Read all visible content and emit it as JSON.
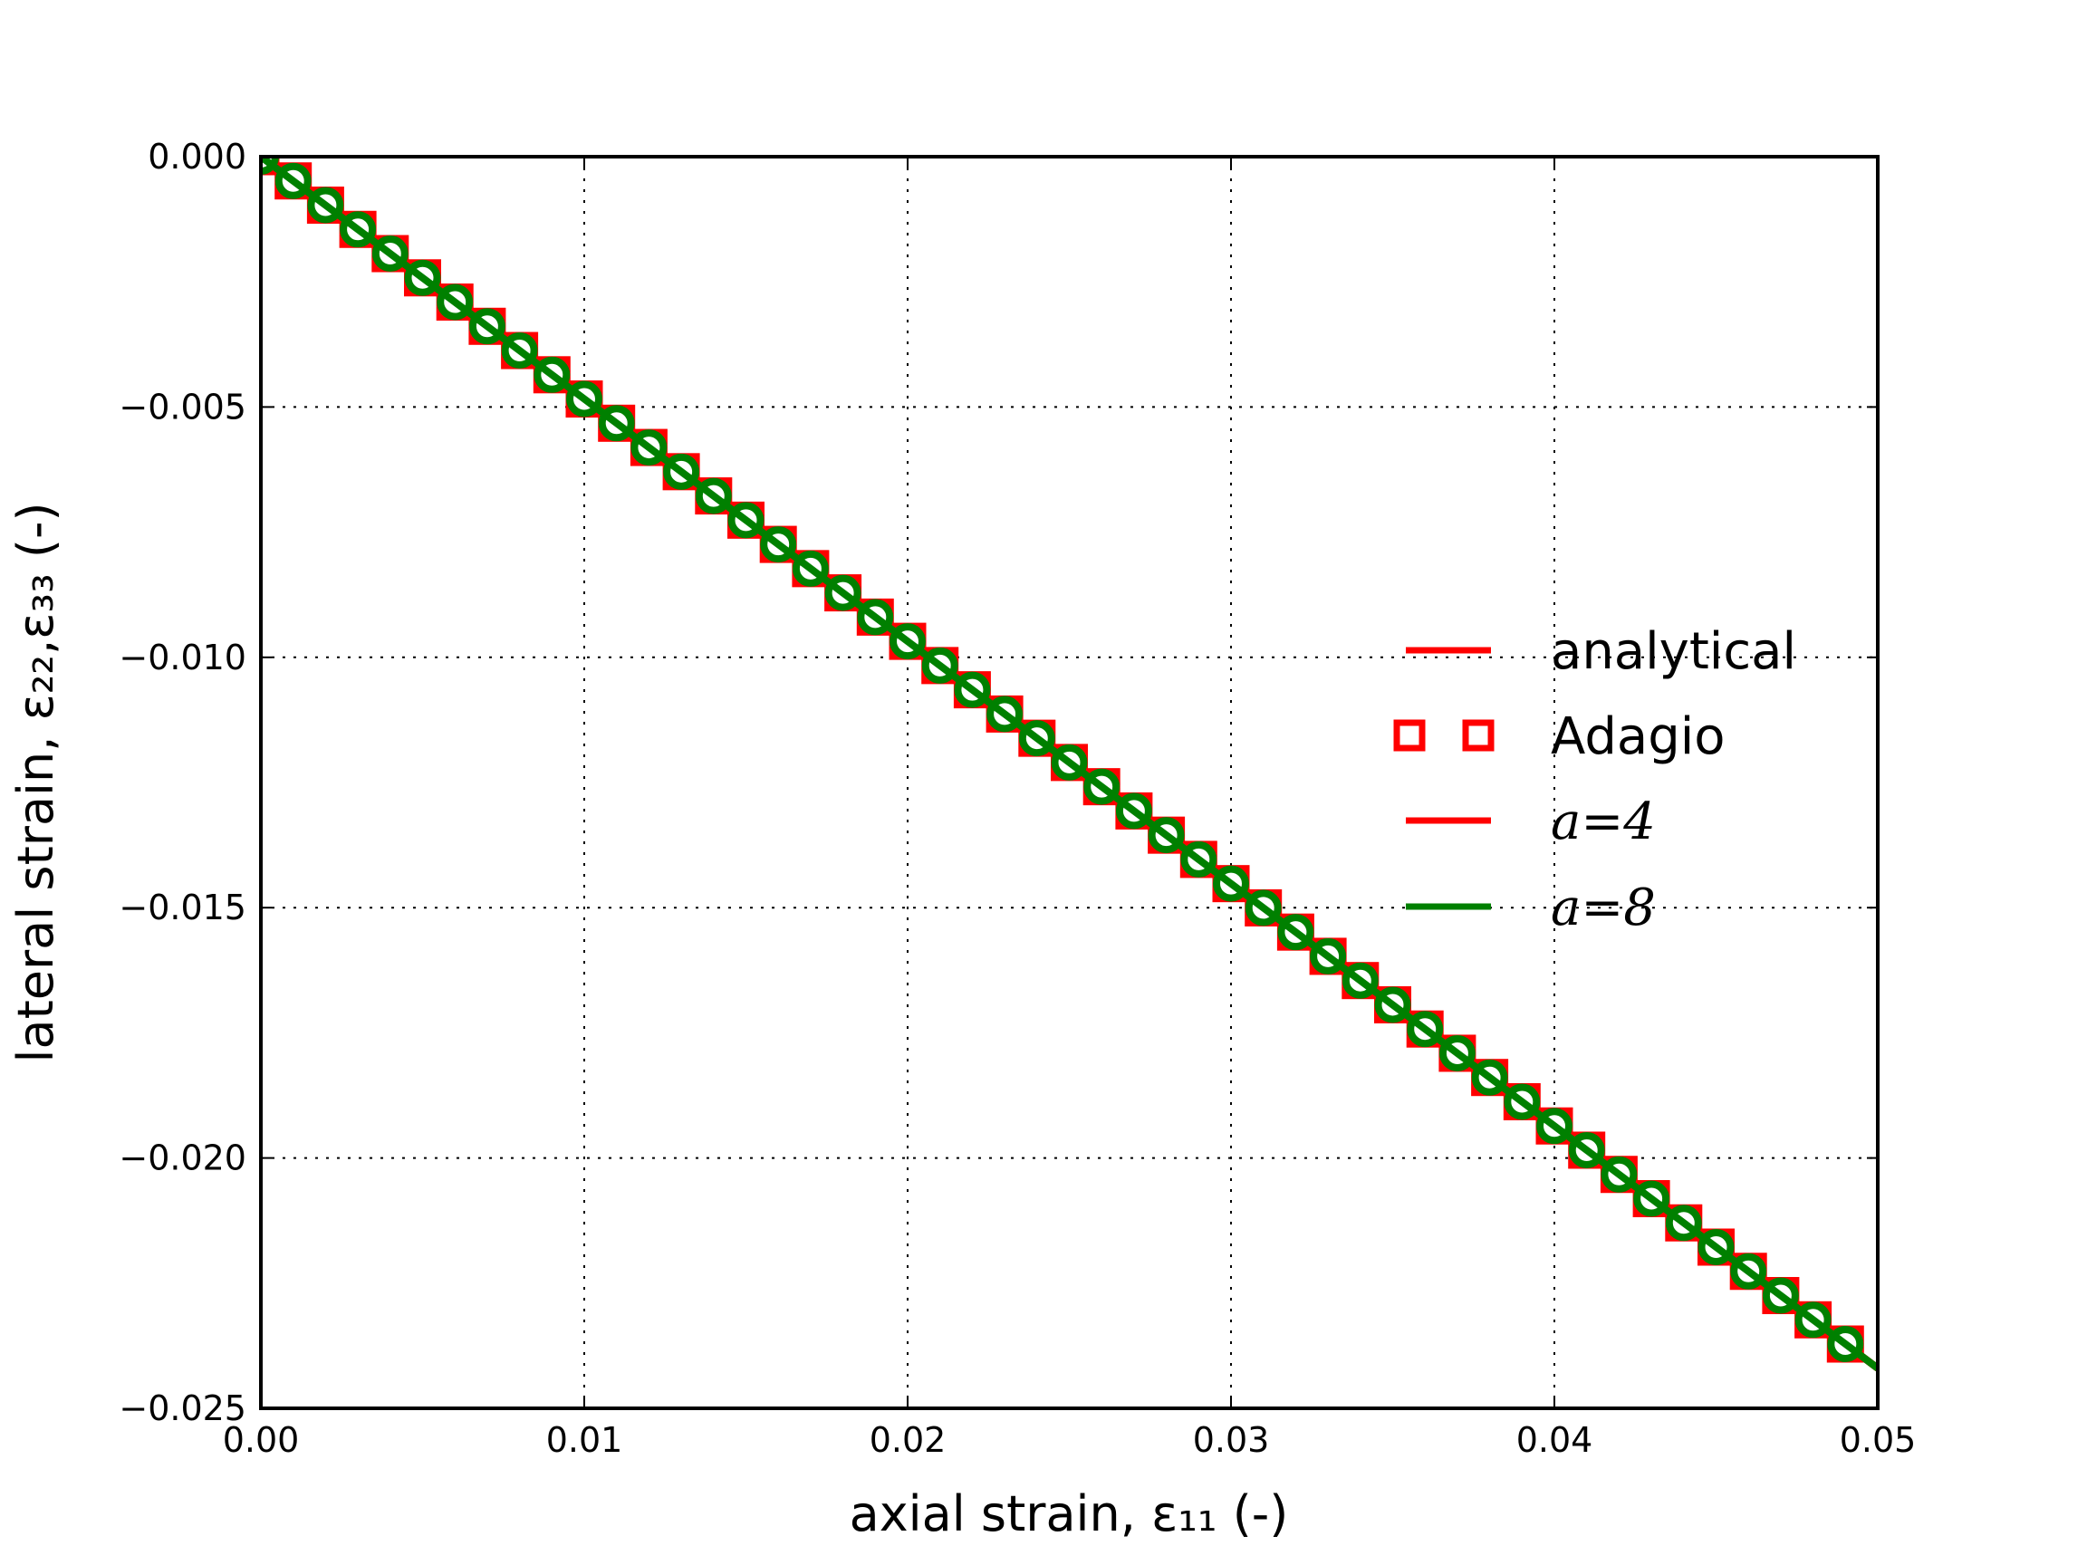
{
  "chart_data": {
    "type": "line",
    "title": "",
    "xlabel": "axial strain, ε₁₁ (-)",
    "ylabel": "lateral strain, ε₂₂,ε₃₃ (-)",
    "xlim": [
      0,
      0.05
    ],
    "ylim": [
      -0.025,
      0
    ],
    "grid": true,
    "legend_placement": "center-right",
    "x_ticks": [
      "0.00",
      "0.01",
      "0.02",
      "0.03",
      "0.04",
      "0.05"
    ],
    "y_ticks": [
      "0.000",
      "−0.005",
      "−0.010",
      "−0.015",
      "−0.020",
      "−0.025"
    ],
    "x_tick_values": [
      0,
      0.01,
      0.02,
      0.03,
      0.04,
      0.05
    ],
    "y_tick_values": [
      0,
      -0.005,
      -0.01,
      -0.015,
      -0.02,
      -0.025
    ],
    "slope": -0.484,
    "marker_step": 0.001,
    "marker_count": 50,
    "series": [
      {
        "name": "analytical",
        "style": "line",
        "color": "#ff0000",
        "x": [
          0,
          0.05
        ],
        "y": [
          0,
          -0.0242
        ]
      },
      {
        "name": "Adagio",
        "style": "square-markers",
        "color": "#ff0000",
        "x_from": 0,
        "x_to": 0.049,
        "y_relation": "y = -0.484 x"
      },
      {
        "name": "a=4",
        "style": "line",
        "color": "#ff0000",
        "x": [
          0,
          0.05
        ],
        "y": [
          0,
          -0.0242
        ]
      },
      {
        "name": "a=8",
        "style": "line+circle-markers",
        "color": "#008000",
        "x": [
          0,
          0.05
        ],
        "y": [
          0,
          -0.0242
        ]
      }
    ]
  }
}
